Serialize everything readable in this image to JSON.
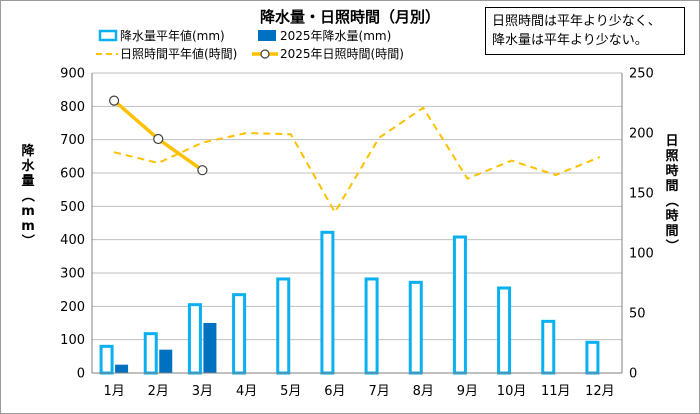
{
  "chart_data": {
    "type": "bar+line",
    "title": "降水量・日照時間（月別）",
    "note": [
      "日照時間は平年より少なく、",
      "降水量は平年より少ない。"
    ],
    "categories": [
      "1月",
      "2月",
      "3月",
      "4月",
      "5月",
      "6月",
      "7月",
      "8月",
      "9月",
      "10月",
      "11月",
      "12月"
    ],
    "left_axis": {
      "label": "降水量（mm）",
      "ylim": [
        0,
        900
      ],
      "ticks": [
        "0",
        "100",
        "200",
        "300",
        "400",
        "500",
        "600",
        "700",
        "800",
        "900"
      ]
    },
    "right_axis": {
      "label": "日照時間（時間）",
      "ylim": [
        0,
        250
      ],
      "ticks": [
        "0",
        "50",
        "100",
        "150",
        "200",
        "250"
      ]
    },
    "series": [
      {
        "name": "降水量平年値(mm)",
        "type": "bar",
        "axis": "left",
        "style": "outline",
        "color": "#0ab0ef",
        "values": [
          80,
          118,
          205,
          235,
          282,
          422,
          282,
          272,
          408,
          255,
          155,
          92
        ]
      },
      {
        "name": "2025年降水量(mm)",
        "type": "bar",
        "axis": "left",
        "style": "filled",
        "color": "#0070c0",
        "values": [
          25,
          70,
          150,
          null,
          null,
          null,
          null,
          null,
          null,
          null,
          null,
          null
        ]
      },
      {
        "name": "日照時間平年値(時間)",
        "type": "line",
        "axis": "right",
        "style": "dashed",
        "color": "#ffc000",
        "values": [
          184,
          175,
          192,
          200,
          199,
          134,
          196,
          221,
          162,
          177,
          165,
          180
        ]
      },
      {
        "name": "2025年日照時間(時間)",
        "type": "line",
        "axis": "right",
        "style": "solid-markers",
        "color": "#ffc000",
        "values": [
          227,
          195,
          169,
          null,
          null,
          null,
          null,
          null,
          null,
          null,
          null,
          null
        ]
      }
    ],
    "grid": true,
    "legend_position": "top-left"
  }
}
